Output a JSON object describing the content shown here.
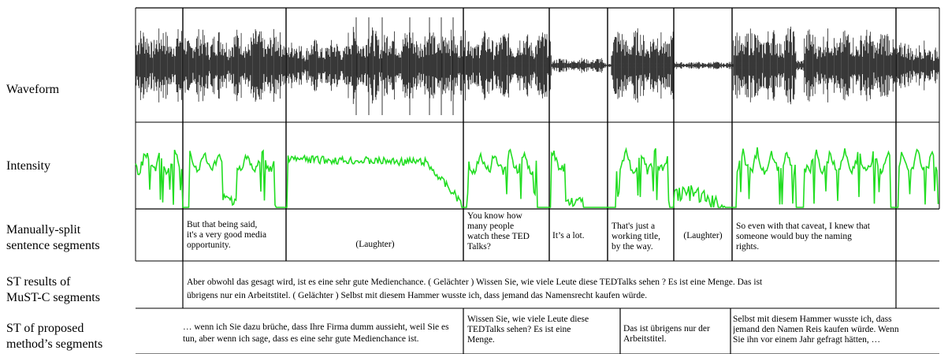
{
  "row_labels": {
    "waveform": "Waveform",
    "intensity": "Intensity",
    "manual_line1": "Manually-split",
    "manual_line2": "sentence segments",
    "must_line1": "ST results of",
    "must_line2": "MuST-C segments",
    "proposed_line1": "ST of proposed",
    "proposed_line2": "method’s segments"
  },
  "manual_segments": [
    "But that being said,\nit's a very good media\nopportunity.",
    "(Laughter)",
    "You know how\nmany people\nwatch these TED\nTalks?",
    "It’s a lot.",
    "That's just a\nworking title,\nby the way.",
    "(Laughter)",
    "So even with that caveat,  I knew that\nsomeone would buy the naming\nrights."
  ],
  "must_segment": "Aber obwohl das gesagt wird, ist es eine sehr gute Medienchance. ( Gelächter ) Wissen Sie, wie viele Leute diese TEDTalks sehen ? Es ist eine Menge. Das ist\nübrigens nur ein Arbeitstitel. ( Gelächter ) Selbst mit diesem Hammer wusste ich, dass jemand das Namensrecht kaufen würde.",
  "proposed_segments": [
    "… wenn ich Sie dazu brüche,  dass Ihre Firma dumm aussieht,  weil Sie es\ntun, aber wenn ich sage,  dass es eine sehr gute Medienchance  ist.",
    "Wissen Sie, wie viele Leute diese\nTEDTalks sehen? Es ist eine\nMenge.",
    "Das ist übrigens nur der\nArbeitstitel.",
    "Selbst mit diesem Hammer wusste ich, dass\njemand den Namen Reis kaufen würde. Wenn\nSie ihn vor einem Jahr gefragt hätten, …"
  ],
  "colors": {
    "waveform": "#222222",
    "intensity": "#22dd22",
    "lines": "#000000"
  }
}
